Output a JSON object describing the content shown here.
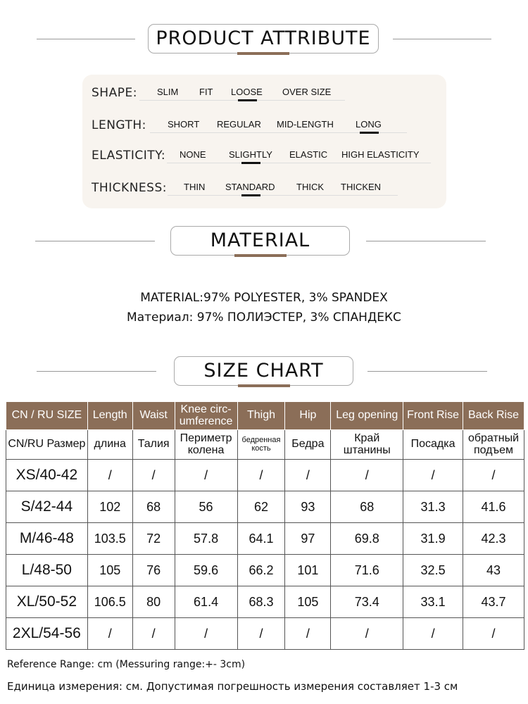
{
  "sections": {
    "attribute_title": "PRODUCT ATTRIBUTE",
    "material_title": "MATERIAL",
    "size_title": "SIZE CHART"
  },
  "attributes": [
    {
      "label": "SHAPE:",
      "options": [
        "SLIM",
        "FIT",
        "LOOSE",
        "OVER SIZE"
      ],
      "selected": "LOOSE"
    },
    {
      "label": "LENGTH:",
      "options": [
        "SHORT",
        "REGULAR",
        "MID-LENGTH",
        "LONG"
      ],
      "selected": "LONG"
    },
    {
      "label": "ELASTICITY:",
      "options": [
        "NONE",
        "SLIGHTLY",
        "ELASTIC",
        "HIGH ELASTICITY"
      ],
      "selected": "SLIGHTLY"
    },
    {
      "label": "THICKNESS:",
      "options": [
        "THIN",
        "STANDARD",
        "THICK",
        "THICKEN"
      ],
      "selected": "STANDARD"
    }
  ],
  "material": {
    "en": "MATERIAL:97% POLYESTER, 3% SPANDEX",
    "ru": "Материал: 97% ПОЛИЭСТЕР, 3% СПАНДЕКС"
  },
  "size_chart": {
    "headers_en": [
      "CN / RU SIZE",
      "Length",
      "Waist",
      "Knee circ-umference",
      "Thigh",
      "Hip",
      "Leg opening",
      "Front Rise",
      "Back Rise"
    ],
    "headers_ru": [
      "CN/RU Размер",
      "длина",
      "Талия",
      "Периметр колена",
      "бедренная кость",
      "Бедра",
      "Край штанины",
      "Посадка",
      "обратный подъем"
    ],
    "rows": [
      [
        "XS/40-42",
        "/",
        "/",
        "/",
        "/",
        "/",
        "/",
        "/",
        "/"
      ],
      [
        "S/42-44",
        "102",
        "68",
        "56",
        "62",
        "93",
        "68",
        "31.3",
        "41.6"
      ],
      [
        "M/46-48",
        "103.5",
        "72",
        "57.8",
        "64.1",
        "97",
        "69.8",
        "31.9",
        "42.3"
      ],
      [
        "L/48-50",
        "105",
        "76",
        "59.6",
        "66.2",
        "101",
        "71.6",
        "32.5",
        "43"
      ],
      [
        "XL/50-52",
        "106.5",
        "80",
        "61.4",
        "68.3",
        "105",
        "73.4",
        "33.1",
        "43.7"
      ],
      [
        "2XL/54-56",
        "/",
        "/",
        "/",
        "/",
        "/",
        "/",
        "/",
        "/"
      ]
    ]
  },
  "footer": {
    "en": "Reference Range: cm (Messuring range:+- 3cm)",
    "ru": "Единица измерения: см. Допустимая погрешность измерения составляет 1-3 см"
  },
  "colors": {
    "accent": "#8b6e58",
    "panel": "#f8f4ef"
  }
}
